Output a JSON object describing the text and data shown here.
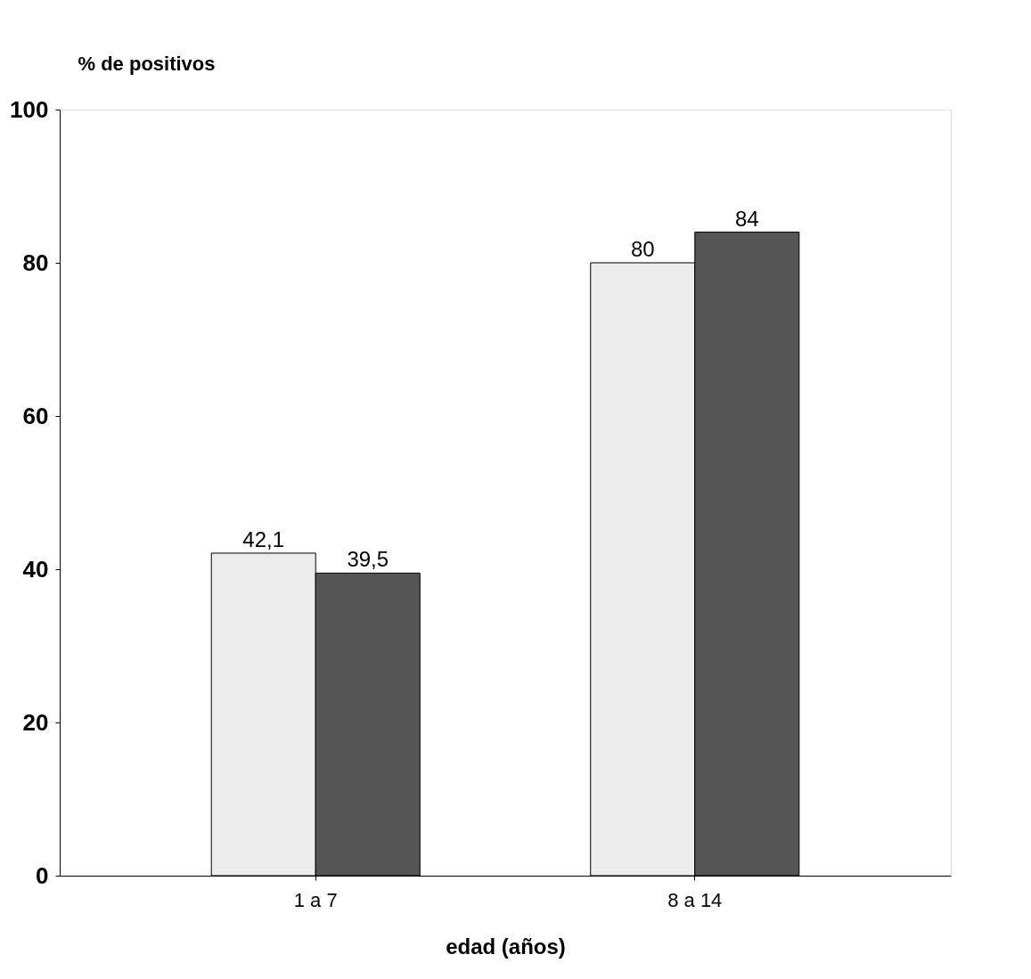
{
  "chart_data": {
    "type": "bar",
    "xlabel": "edad (años)",
    "ylabel": "% de positivos",
    "categories": [
      "1 a 7",
      "8 a 14"
    ],
    "series": [
      {
        "color": "#ececec",
        "values": [
          42.1,
          80
        ],
        "value_labels": [
          "42,1",
          "80"
        ]
      },
      {
        "color": "#555555",
        "values": [
          39.5,
          84
        ],
        "value_labels": [
          "39,5",
          "84"
        ]
      }
    ],
    "ylim": [
      0,
      100
    ],
    "yticks": [
      0,
      20,
      40,
      60,
      80,
      100
    ],
    "grid": false,
    "legend": false
  }
}
